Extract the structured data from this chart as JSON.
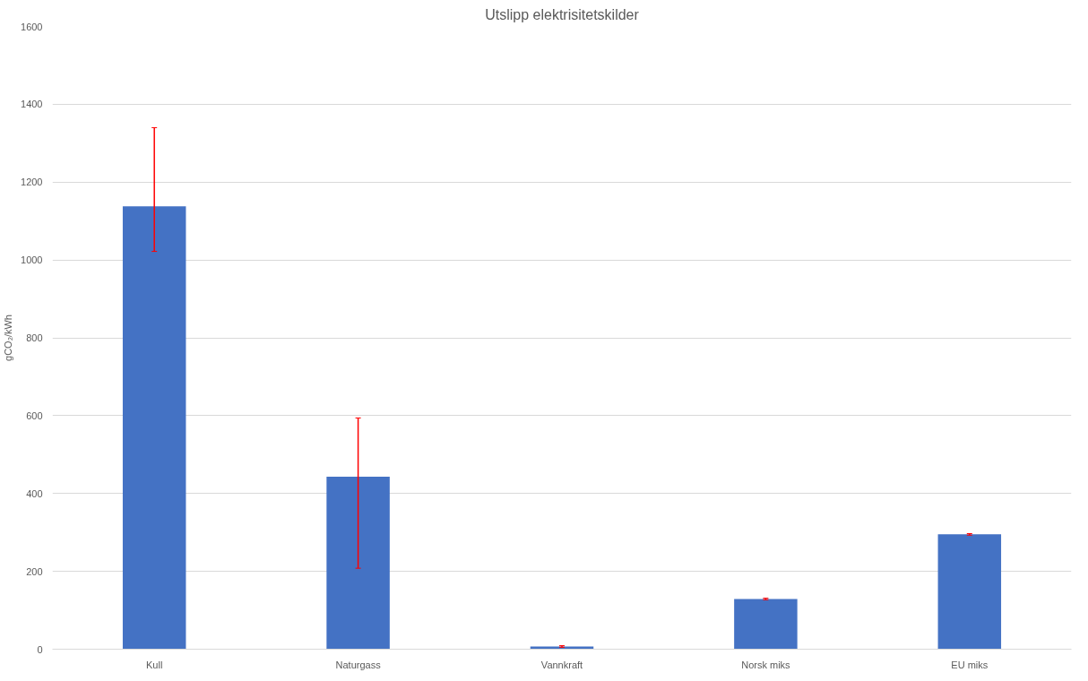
{
  "chart_data": {
    "type": "bar",
    "title": "Utslipp elektrisitetskilder",
    "ylabel": "gCO₂/kWh",
    "categories": [
      "Kull",
      "Naturgass",
      "Vannkraft",
      "Norsk miks",
      "EU miks"
    ],
    "values": [
      1138,
      443,
      7,
      129,
      295
    ],
    "errors": [
      [
        1022,
        1340
      ],
      [
        208,
        594
      ],
      [
        5,
        9
      ],
      [
        127,
        131
      ],
      [
        293,
        297
      ]
    ],
    "color": "#4472c4",
    "ylim": [
      0,
      1600
    ],
    "yticks": [
      0,
      200,
      400,
      600,
      800,
      1000,
      1200,
      1400,
      1600
    ],
    "grid": "y"
  }
}
